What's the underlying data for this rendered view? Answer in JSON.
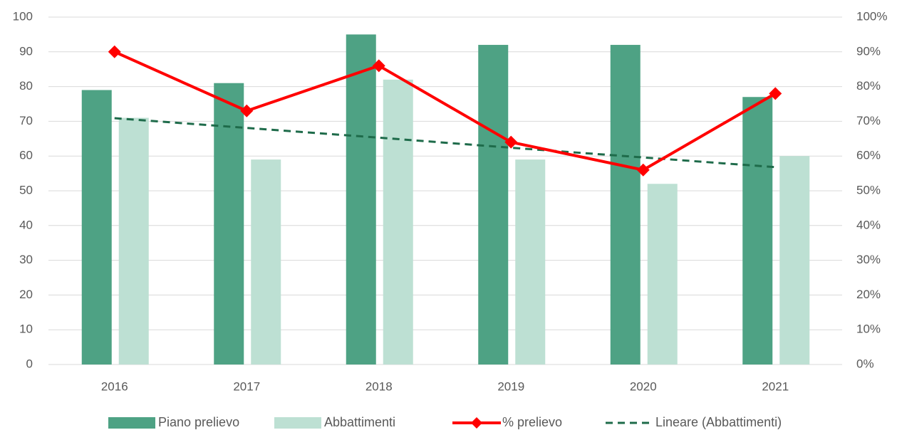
{
  "chart_data": {
    "type": "bar",
    "categories": [
      "2016",
      "2017",
      "2018",
      "2019",
      "2020",
      "2021"
    ],
    "series": [
      {
        "name": "Piano prelievo",
        "type": "bar",
        "color": "#4ea284",
        "values": [
          79,
          81,
          95,
          92,
          92,
          77
        ]
      },
      {
        "name": "Abbattimenti",
        "type": "bar",
        "color": "#bde0d3",
        "values": [
          71,
          59,
          82,
          59,
          52,
          60
        ]
      },
      {
        "name": "% prelievo",
        "type": "line",
        "axis": "y2",
        "marker": "diamond",
        "color": "#ff0000",
        "values": [
          90,
          73,
          86,
          64,
          56,
          78
        ]
      },
      {
        "name": "Lineare (Abbattimenti)",
        "type": "line",
        "line_style": "dashed",
        "color": "#1e6b4a",
        "values": [
          70.9,
          68.1,
          65.3,
          62.4,
          59.6,
          56.8
        ]
      }
    ],
    "ylim": [
      0,
      100
    ],
    "yticks": [
      0,
      10,
      20,
      30,
      40,
      50,
      60,
      70,
      80,
      90,
      100
    ],
    "y2lim": [
      0,
      100
    ],
    "y2ticks": [
      {
        "value": 0,
        "label": "0%"
      },
      {
        "value": 10,
        "label": "10%"
      },
      {
        "value": 20,
        "label": "20%"
      },
      {
        "value": 30,
        "label": "30%"
      },
      {
        "value": 40,
        "label": "40%"
      },
      {
        "value": 50,
        "label": "50%"
      },
      {
        "value": 60,
        "label": "60%"
      },
      {
        "value": 70,
        "label": "70%"
      },
      {
        "value": 80,
        "label": "80%"
      },
      {
        "value": 90,
        "label": "90%"
      },
      {
        "value": 100,
        "label": "100%"
      }
    ],
    "grid": true,
    "legend": "bottom"
  }
}
